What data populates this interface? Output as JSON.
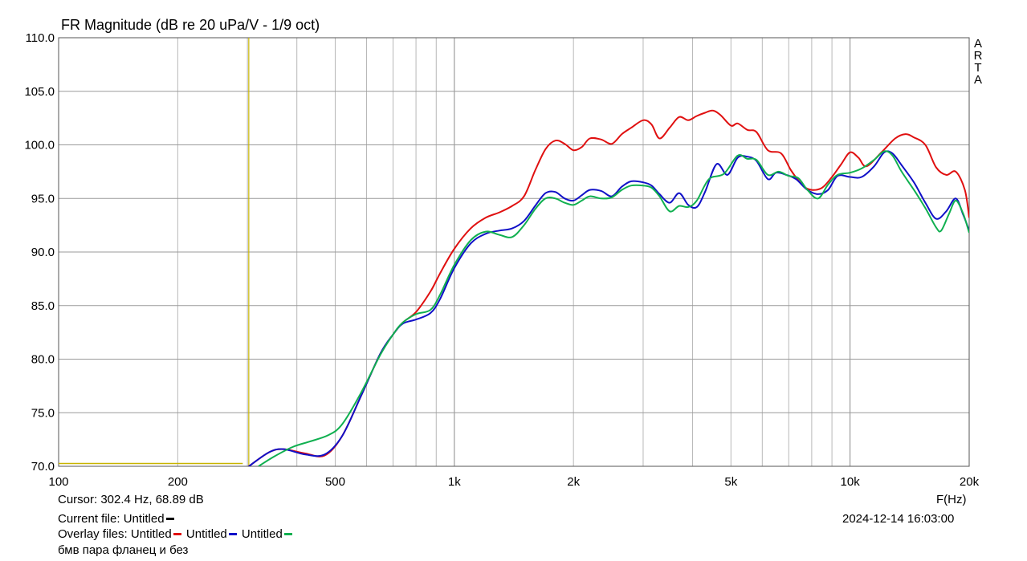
{
  "chart_data": {
    "type": "line",
    "title": "FR Magnitude (dB re 20 uPa/V - 1/9 oct)",
    "brand": [
      "A",
      "R",
      "T",
      "A"
    ],
    "xlabel": "F(Hz)",
    "x_scale": "log",
    "xlim": [
      100,
      20000
    ],
    "ylim": [
      70,
      110
    ],
    "y_ticks": [
      "70.0",
      "75.0",
      "80.0",
      "85.0",
      "90.0",
      "95.0",
      "100.0",
      "105.0",
      "110.0"
    ],
    "x_tick_labels": [
      {
        "value": 100,
        "label": "100"
      },
      {
        "value": 200,
        "label": "200"
      },
      {
        "value": 500,
        "label": "500"
      },
      {
        "value": 1000,
        "label": "1k"
      },
      {
        "value": 2000,
        "label": "2k"
      },
      {
        "value": 5000,
        "label": "5k"
      },
      {
        "value": 10000,
        "label": "10k"
      },
      {
        "value": 20000,
        "label": "20k"
      }
    ],
    "grid": true,
    "cursor": {
      "freq": 302.4,
      "color": "#c8b400"
    },
    "series": [
      {
        "color": "#e01010",
        "points": [
          [
            300,
            69.9
          ],
          [
            340,
            71.3
          ],
          [
            370,
            71.6
          ],
          [
            420,
            71.2
          ],
          [
            470,
            71.0
          ],
          [
            520,
            72.8
          ],
          [
            580,
            76.5
          ],
          [
            650,
            80.5
          ],
          [
            700,
            82.3
          ],
          [
            740,
            83.4
          ],
          [
            800,
            84.4
          ],
          [
            870,
            86.3
          ],
          [
            920,
            88.0
          ],
          [
            1000,
            90.3
          ],
          [
            1100,
            92.2
          ],
          [
            1200,
            93.2
          ],
          [
            1300,
            93.7
          ],
          [
            1400,
            94.3
          ],
          [
            1500,
            95.2
          ],
          [
            1600,
            97.6
          ],
          [
            1700,
            99.6
          ],
          [
            1800,
            100.4
          ],
          [
            1900,
            100.1
          ],
          [
            2000,
            99.5
          ],
          [
            2100,
            99.8
          ],
          [
            2200,
            100.6
          ],
          [
            2350,
            100.5
          ],
          [
            2500,
            100.1
          ],
          [
            2650,
            101.0
          ],
          [
            2800,
            101.6
          ],
          [
            3000,
            102.3
          ],
          [
            3150,
            101.9
          ],
          [
            3300,
            100.6
          ],
          [
            3500,
            101.6
          ],
          [
            3700,
            102.6
          ],
          [
            3900,
            102.3
          ],
          [
            4100,
            102.7
          ],
          [
            4300,
            103.0
          ],
          [
            4500,
            103.2
          ],
          [
            4700,
            102.8
          ],
          [
            5000,
            101.8
          ],
          [
            5200,
            102.0
          ],
          [
            5500,
            101.4
          ],
          [
            5800,
            101.2
          ],
          [
            6200,
            99.5
          ],
          [
            6700,
            99.2
          ],
          [
            7100,
            97.6
          ],
          [
            7600,
            96.2
          ],
          [
            8000,
            95.8
          ],
          [
            8500,
            96.0
          ],
          [
            9000,
            97.0
          ],
          [
            9500,
            98.2
          ],
          [
            10000,
            99.3
          ],
          [
            10500,
            98.8
          ],
          [
            11000,
            98.0
          ],
          [
            12000,
            99.3
          ],
          [
            13000,
            100.6
          ],
          [
            13800,
            101.0
          ],
          [
            14500,
            100.7
          ],
          [
            15500,
            100.0
          ],
          [
            16500,
            97.9
          ],
          [
            17500,
            97.2
          ],
          [
            18500,
            97.5
          ],
          [
            19500,
            95.8
          ],
          [
            20000,
            93.2
          ]
        ]
      },
      {
        "color": "#1010c8",
        "points": [
          [
            300,
            69.9
          ],
          [
            340,
            71.3
          ],
          [
            370,
            71.6
          ],
          [
            420,
            71.1
          ],
          [
            470,
            71.1
          ],
          [
            520,
            72.8
          ],
          [
            580,
            76.5
          ],
          [
            650,
            80.5
          ],
          [
            700,
            82.3
          ],
          [
            740,
            83.3
          ],
          [
            800,
            83.7
          ],
          [
            870,
            84.3
          ],
          [
            920,
            85.6
          ],
          [
            1000,
            88.5
          ],
          [
            1100,
            90.8
          ],
          [
            1200,
            91.7
          ],
          [
            1300,
            92.0
          ],
          [
            1400,
            92.2
          ],
          [
            1500,
            92.9
          ],
          [
            1600,
            94.3
          ],
          [
            1700,
            95.5
          ],
          [
            1800,
            95.6
          ],
          [
            1900,
            95.0
          ],
          [
            2000,
            94.8
          ],
          [
            2100,
            95.3
          ],
          [
            2200,
            95.8
          ],
          [
            2350,
            95.7
          ],
          [
            2500,
            95.2
          ],
          [
            2650,
            96.1
          ],
          [
            2800,
            96.6
          ],
          [
            3000,
            96.5
          ],
          [
            3150,
            96.2
          ],
          [
            3300,
            95.4
          ],
          [
            3500,
            94.6
          ],
          [
            3700,
            95.5
          ],
          [
            3900,
            94.4
          ],
          [
            4100,
            94.2
          ],
          [
            4300,
            95.6
          ],
          [
            4600,
            98.2
          ],
          [
            4900,
            97.2
          ],
          [
            5200,
            98.8
          ],
          [
            5500,
            98.9
          ],
          [
            5800,
            98.5
          ],
          [
            6200,
            96.8
          ],
          [
            6500,
            97.4
          ],
          [
            6900,
            97.2
          ],
          [
            7300,
            96.8
          ],
          [
            7800,
            95.8
          ],
          [
            8300,
            95.4
          ],
          [
            8800,
            95.8
          ],
          [
            9300,
            97.1
          ],
          [
            10000,
            97.0
          ],
          [
            10700,
            97.0
          ],
          [
            11500,
            98.0
          ],
          [
            12200,
            99.3
          ],
          [
            12800,
            99.2
          ],
          [
            13500,
            98.1
          ],
          [
            14500,
            96.5
          ],
          [
            15500,
            94.6
          ],
          [
            16500,
            93.1
          ],
          [
            17500,
            93.8
          ],
          [
            18500,
            95.0
          ],
          [
            19300,
            93.5
          ],
          [
            20000,
            92.0
          ]
        ]
      },
      {
        "color": "#10b050",
        "points": [
          [
            320,
            70.0
          ],
          [
            350,
            70.9
          ],
          [
            390,
            71.8
          ],
          [
            430,
            72.3
          ],
          [
            480,
            72.9
          ],
          [
            520,
            73.9
          ],
          [
            580,
            76.8
          ],
          [
            650,
            80.4
          ],
          [
            700,
            82.3
          ],
          [
            740,
            83.4
          ],
          [
            800,
            84.2
          ],
          [
            870,
            84.6
          ],
          [
            920,
            86.0
          ],
          [
            1000,
            88.8
          ],
          [
            1100,
            91.1
          ],
          [
            1200,
            91.9
          ],
          [
            1300,
            91.6
          ],
          [
            1400,
            91.4
          ],
          [
            1500,
            92.5
          ],
          [
            1600,
            94.0
          ],
          [
            1700,
            95.0
          ],
          [
            1800,
            95.0
          ],
          [
            1900,
            94.6
          ],
          [
            2000,
            94.4
          ],
          [
            2100,
            94.8
          ],
          [
            2200,
            95.2
          ],
          [
            2350,
            95.0
          ],
          [
            2500,
            95.1
          ],
          [
            2650,
            95.8
          ],
          [
            2800,
            96.2
          ],
          [
            3000,
            96.2
          ],
          [
            3150,
            96.0
          ],
          [
            3300,
            95.2
          ],
          [
            3500,
            93.8
          ],
          [
            3700,
            94.3
          ],
          [
            3900,
            94.2
          ],
          [
            4100,
            94.8
          ],
          [
            4400,
            96.8
          ],
          [
            4800,
            97.3
          ],
          [
            5200,
            99.0
          ],
          [
            5500,
            98.7
          ],
          [
            5800,
            98.6
          ],
          [
            6200,
            97.2
          ],
          [
            6600,
            97.5
          ],
          [
            7000,
            97.1
          ],
          [
            7400,
            96.9
          ],
          [
            7800,
            95.8
          ],
          [
            8300,
            95.0
          ],
          [
            8800,
            96.3
          ],
          [
            9300,
            97.2
          ],
          [
            10000,
            97.4
          ],
          [
            10700,
            97.8
          ],
          [
            11500,
            98.6
          ],
          [
            12200,
            99.4
          ],
          [
            12800,
            99.0
          ],
          [
            13500,
            97.5
          ],
          [
            14500,
            95.8
          ],
          [
            15500,
            94.1
          ],
          [
            16500,
            92.3
          ],
          [
            17000,
            92.0
          ],
          [
            17800,
            93.6
          ],
          [
            18500,
            94.8
          ],
          [
            19300,
            93.6
          ],
          [
            20000,
            91.8
          ]
        ]
      }
    ]
  },
  "cursor_readout": "Cursor: 302.4 Hz, 68.89 dB",
  "current_file_label": "Current file: Untitled",
  "current_file_color": "#000000",
  "overlay": {
    "label": "Overlay files: ",
    "items": [
      {
        "name": "Untitled",
        "color": "#e01010"
      },
      {
        "name": "Untitled",
        "color": "#1010c8"
      },
      {
        "name": "Untitled",
        "color": "#10b050"
      }
    ]
  },
  "timestamp": "2024-12-14  16:03:00",
  "note": "бмв пара фланец и без"
}
